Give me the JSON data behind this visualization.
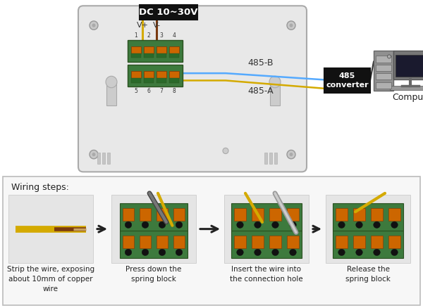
{
  "bg_color": "#ffffff",
  "bottom_section_bg": "#f7f7f7",
  "bottom_border_color": "#bbbbbb",
  "title_dc": "DC 10~30V",
  "label_vplus": "V+",
  "label_vminus": "V-",
  "label_485B": "485-B",
  "label_485A": "485-A",
  "label_converter": "485\nconverter",
  "label_computer": "Computer",
  "wire_yellow_color": "#d4aa00",
  "wire_blue_color": "#55aaff",
  "wire_brown_color": "#7a3a10",
  "wire_black_color": "#222222",
  "device_bg": "#e8e8e8",
  "device_edge": "#aaaaaa",
  "connector_green": "#3d7a3d",
  "connector_orange": "#cc6600",
  "connector_edge": "#2a5020",
  "connector_orange_edge": "#883300",
  "arrow_color": "#222222",
  "wiring_title": "Wiring steps:",
  "step1_label": "Strip the wire, exposing\nabout 10mm of copper\nwire",
  "step2_label": "Press down the\nspring block",
  "step3_label": "Insert the wire into\nthe connection hole",
  "step4_label": "Release the\nspring block",
  "fig_width": 6.0,
  "fig_height": 4.38,
  "dpi": 100
}
